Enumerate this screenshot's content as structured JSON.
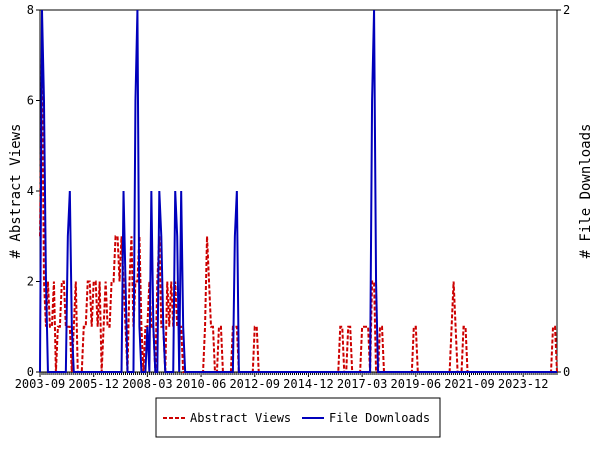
{
  "chart_data": {
    "type": "line",
    "y_label": "# Abstract Views",
    "y2_label": "# File Downloads",
    "categories": [
      "2003-09",
      null,
      null,
      null,
      null,
      null,
      null,
      null,
      null,
      null,
      null,
      null,
      null,
      null,
      null,
      null,
      null,
      null,
      null,
      null,
      null,
      null,
      null,
      null,
      null,
      null,
      null,
      "2005-12",
      null,
      null,
      null,
      null,
      null,
      null,
      null,
      null,
      null,
      null,
      null,
      null,
      null,
      null,
      null,
      null,
      null,
      null,
      null,
      null,
      null,
      null,
      null,
      null,
      null,
      null,
      "2008-03",
      null,
      null,
      null,
      null,
      null,
      null,
      null,
      null,
      null,
      null,
      null,
      null,
      null,
      null,
      null,
      null,
      null,
      null,
      null,
      null,
      null,
      null,
      null,
      null,
      null,
      null,
      "2010-06",
      null,
      null,
      null,
      null,
      null,
      null,
      null,
      null,
      null,
      null,
      null,
      null,
      null,
      null,
      null,
      null,
      null,
      null,
      null,
      null,
      null,
      null,
      null,
      null,
      null,
      null,
      "2012-09",
      null,
      null,
      null,
      null,
      null,
      null,
      null,
      null,
      null,
      null,
      null,
      null,
      null,
      null,
      null,
      null,
      null,
      null,
      null,
      null,
      null,
      null,
      null,
      null,
      null,
      null,
      "2014-12",
      null,
      null,
      null,
      null,
      null,
      null,
      null,
      null,
      null,
      null,
      null,
      null,
      null,
      null,
      null,
      null,
      null,
      null,
      null,
      null,
      null,
      null,
      null,
      null,
      null,
      null,
      "2017-03",
      null,
      null,
      null,
      null,
      null,
      null,
      null,
      null,
      null,
      null,
      null,
      null,
      null,
      null,
      null,
      null,
      null,
      null,
      null,
      null,
      null,
      null,
      null,
      null,
      null,
      null,
      "2019-06",
      null,
      null,
      null,
      null,
      null,
      null,
      null,
      null,
      null,
      null,
      null,
      null,
      null,
      null,
      null,
      null,
      null,
      null,
      null,
      null,
      null,
      null,
      null,
      null,
      null,
      null,
      "2021-09",
      null,
      null,
      null,
      null,
      null,
      null,
      null,
      null,
      null,
      null,
      null,
      null,
      null,
      null,
      null,
      null,
      null,
      null,
      null,
      null,
      null,
      null,
      null,
      null,
      null,
      null,
      "2023-12",
      null,
      null,
      null,
      null,
      null,
      null,
      null,
      null,
      null,
      null,
      null,
      null,
      null,
      null,
      null,
      null,
      null
    ],
    "series": [
      {
        "name": "Abstract Views",
        "color": "#cc0000",
        "axis": "y",
        "values": [
          3,
          7,
          2,
          1,
          2,
          1,
          1,
          2,
          0,
          1,
          1,
          2,
          2,
          1,
          1,
          1,
          0,
          1,
          2,
          0,
          0,
          0,
          1,
          1,
          2,
          2,
          1,
          2,
          2,
          1,
          2,
          0,
          1,
          2,
          1,
          1,
          2,
          2,
          3,
          3,
          2,
          3,
          2,
          1,
          0,
          2,
          3,
          1,
          2,
          2,
          3,
          1,
          0,
          1,
          1,
          2,
          1,
          1,
          0,
          2,
          3,
          1,
          1,
          0,
          2,
          1,
          2,
          1,
          2,
          1,
          1,
          1,
          0,
          0,
          0,
          0,
          0,
          0,
          0,
          0,
          0,
          0,
          0,
          1,
          3,
          2,
          1,
          1,
          0,
          0,
          1,
          1,
          0,
          0,
          0,
          0,
          0,
          1,
          1,
          1,
          0,
          0,
          0,
          0,
          0,
          0,
          0,
          0,
          1,
          1,
          0,
          0,
          0,
          0,
          0,
          0,
          0,
          0,
          0,
          0,
          0,
          0,
          0,
          0,
          0,
          0,
          0,
          0,
          0,
          0,
          0,
          0,
          0,
          0,
          0,
          0,
          0,
          0,
          0,
          0,
          0,
          0,
          0,
          0,
          0,
          0,
          0,
          0,
          0,
          0,
          0,
          1,
          1,
          0,
          0,
          1,
          1,
          0,
          0,
          0,
          0,
          0,
          1,
          1,
          1,
          1,
          0,
          2,
          2,
          0,
          0,
          1,
          1,
          0,
          0,
          0,
          0,
          0,
          0,
          0,
          0,
          0,
          0,
          0,
          0,
          0,
          0,
          0,
          1,
          1,
          0,
          0,
          0,
          0,
          0,
          0,
          0,
          0,
          0,
          0,
          0,
          0,
          0,
          0,
          0,
          0,
          0,
          1,
          2,
          1,
          0,
          0,
          0,
          1,
          1,
          0,
          0,
          0,
          0,
          0,
          0,
          0,
          0,
          0,
          0,
          0,
          0,
          0,
          0,
          0,
          0,
          0,
          0,
          0,
          0,
          0,
          0,
          0,
          0,
          0,
          0,
          0,
          0,
          0,
          0,
          0,
          0,
          0,
          0,
          0,
          0,
          0,
          0,
          0,
          0,
          0,
          0,
          0,
          1,
          1,
          0
        ]
      },
      {
        "name": "File Downloads",
        "color": "#0000bb",
        "axis": "y2",
        "values": [
          0,
          2,
          1.5,
          0.5,
          0,
          0,
          0,
          0,
          0,
          0,
          0,
          0,
          0,
          0,
          0.75,
          1,
          0.25,
          0,
          0,
          0,
          0,
          0,
          0,
          0,
          0,
          0,
          0,
          0,
          0,
          0,
          0,
          0,
          0,
          0,
          0,
          0,
          0,
          0,
          0,
          0,
          0,
          0,
          1,
          0.5,
          0,
          0,
          0,
          0,
          1.5,
          2,
          0.25,
          0,
          0,
          0,
          0.25,
          0,
          1,
          0.25,
          0,
          0,
          1,
          0.75,
          0.25,
          0,
          0,
          0,
          0,
          0,
          1,
          0.75,
          0,
          1,
          0.25,
          0,
          0,
          0,
          0,
          0,
          0,
          0,
          0,
          0,
          0,
          0,
          0,
          0,
          0,
          0,
          0,
          0,
          0,
          0,
          0,
          0,
          0,
          0,
          0,
          0,
          0.75,
          1,
          0,
          0,
          0,
          0,
          0,
          0,
          0,
          0,
          0,
          0,
          0,
          0,
          0,
          0,
          0,
          0,
          0,
          0,
          0,
          0,
          0,
          0,
          0,
          0,
          0,
          0,
          0,
          0,
          0,
          0,
          0,
          0,
          0,
          0,
          0,
          0,
          0,
          0,
          0,
          0,
          0,
          0,
          0,
          0,
          0,
          0,
          0,
          0,
          0,
          0,
          0,
          0,
          0,
          0,
          0,
          0,
          0,
          0,
          0,
          0,
          0,
          0,
          0,
          0,
          0,
          0,
          0,
          1.5,
          2,
          0.5,
          0,
          0,
          0,
          0,
          0,
          0,
          0,
          0,
          0,
          0,
          0,
          0,
          0,
          0,
          0,
          0,
          0,
          0,
          0,
          0,
          0,
          0,
          0,
          0,
          0,
          0,
          0,
          0,
          0,
          0,
          0,
          0,
          0,
          0,
          0,
          0,
          0,
          0,
          0,
          0,
          0,
          0,
          0,
          0,
          0,
          0,
          0,
          0,
          0,
          0,
          0,
          0,
          0,
          0,
          0,
          0,
          0,
          0,
          0,
          0,
          0,
          0,
          0,
          0,
          0,
          0,
          0,
          0,
          0,
          0,
          0,
          0,
          0,
          0,
          0,
          0,
          0,
          0,
          0,
          0,
          0,
          0,
          0,
          0,
          0,
          0,
          0,
          0,
          0,
          0,
          0
        ]
      }
    ],
    "ylim": [
      0,
      8
    ],
    "yticks": [
      0,
      2,
      4,
      6,
      8
    ],
    "y2lim": [
      0,
      2
    ],
    "y2ticks": [
      0,
      2
    ],
    "legend": "bottom"
  }
}
